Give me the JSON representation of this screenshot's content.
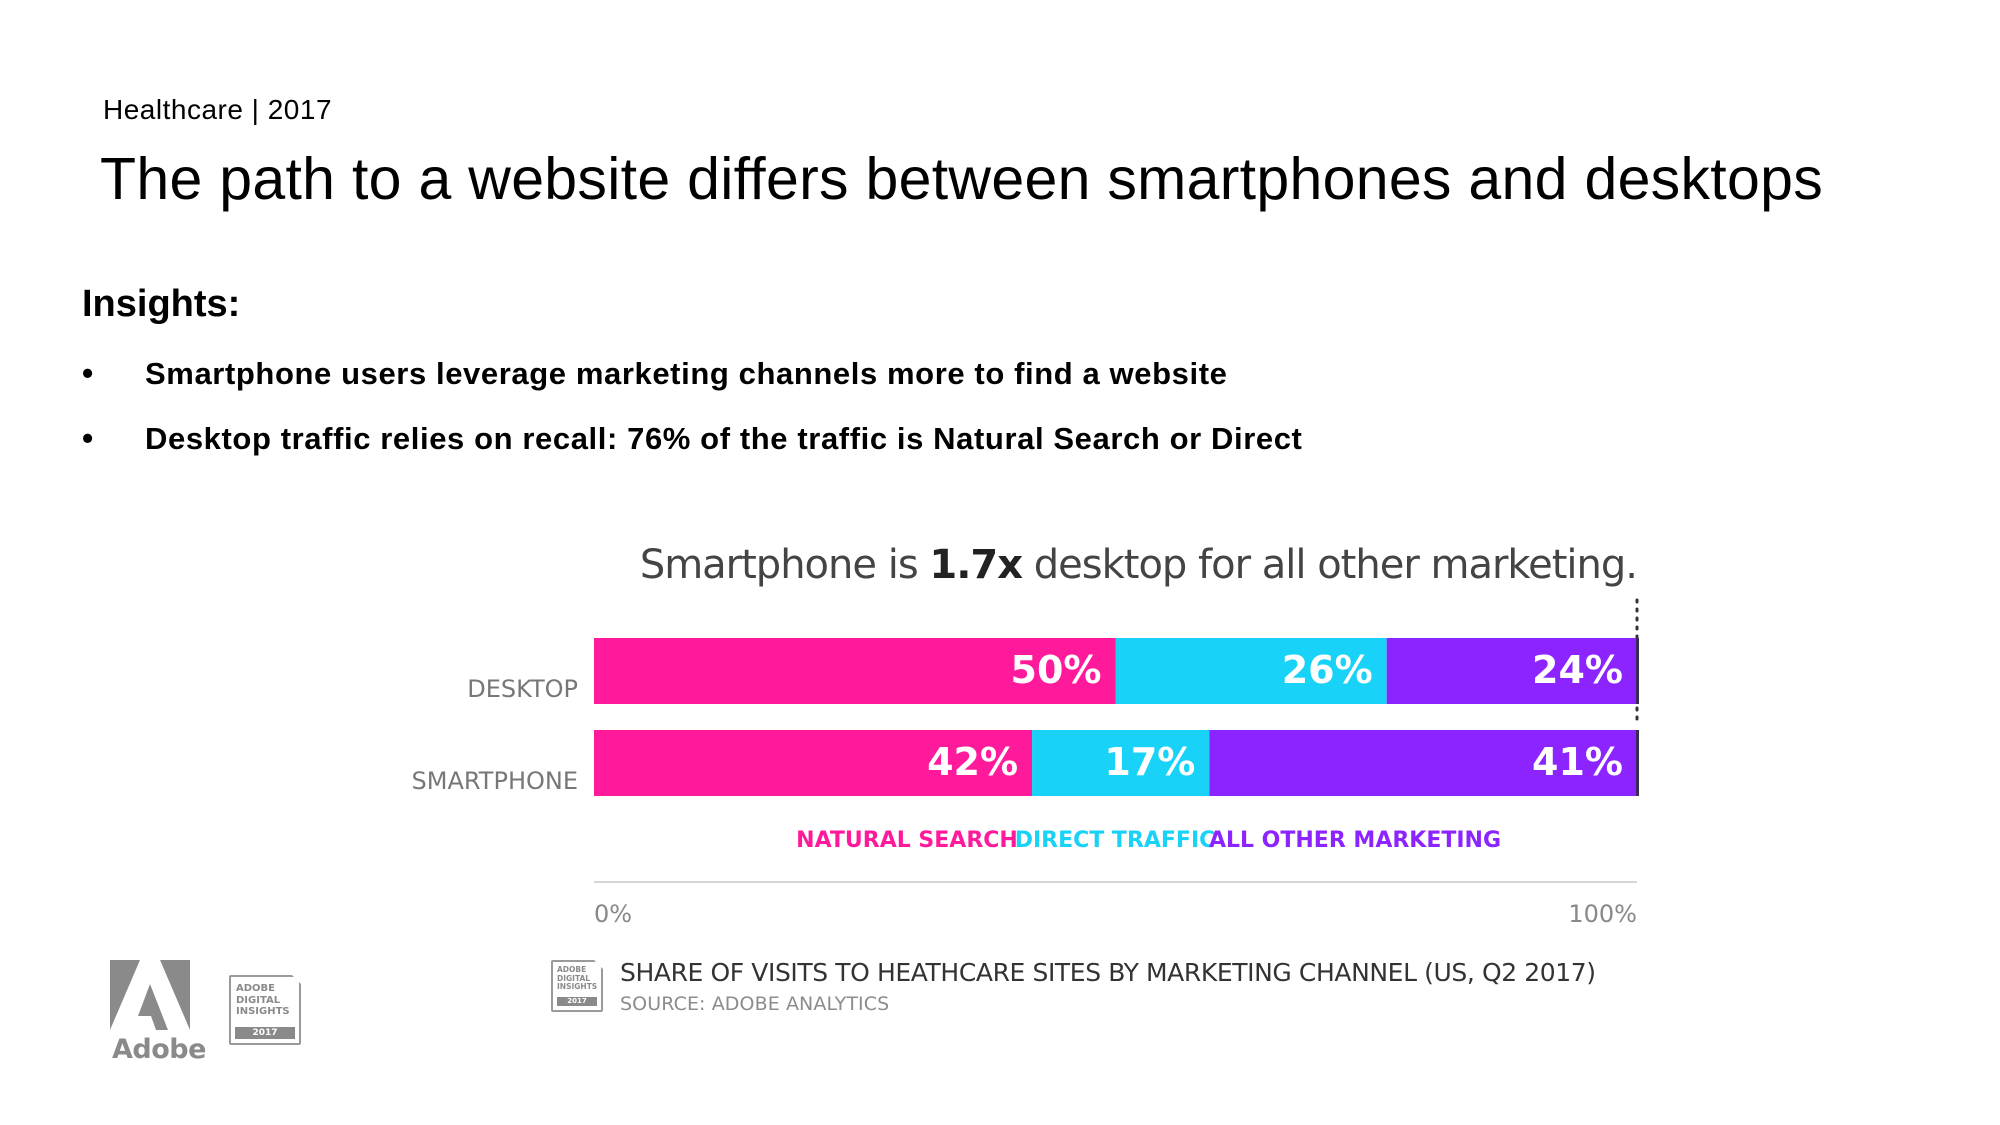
{
  "header": {
    "kicker": "Healthcare | 2017",
    "title": "The path to a website differs between smartphones and desktops"
  },
  "insights": {
    "heading": "Insights:",
    "bullets": [
      "Smartphone users leverage marketing channels more to find a website",
      "Desktop traffic relies on recall: 76% of the traffic is Natural Search or Direct"
    ],
    "bullet_glyph": "•"
  },
  "chart_data": {
    "type": "bar",
    "orientation": "horizontal",
    "stacked": true,
    "normalized": true,
    "headline": {
      "before": "Smartphone is ",
      "bold": "1.7x",
      "after": " desktop for all other marketing."
    },
    "categories": [
      "DESKTOP",
      "SMARTPHONE"
    ],
    "series": [
      {
        "name": "NATURAL SEARCH",
        "values": [
          50,
          42
        ],
        "color": "#ff1a9c"
      },
      {
        "name": "DIRECT TRAFFIC",
        "values": [
          26,
          17
        ],
        "color": "#19d2f7"
      },
      {
        "name": "ALL OTHER MARKETING",
        "values": [
          24,
          41
        ],
        "color": "#8c24ff"
      }
    ],
    "value_suffix": "%",
    "xlim": [
      0,
      100
    ],
    "xticks": [
      "0%",
      "100%"
    ],
    "legend_position": "below-bars",
    "reference_line_at": 100
  },
  "footer": {
    "logo_text": "Adobe",
    "badge_lines": [
      "ADOBE",
      "DIGITAL",
      "INSIGHTS"
    ],
    "badge_year": "2017",
    "source_title": "SHARE OF VISITS TO HEATHCARE SITES BY MARKETING CHANNEL (US, Q2 2017)",
    "source_note": "SOURCE: ADOBE ANALYTICS"
  },
  "colors": {
    "natural_search": "#ff1a9c",
    "direct_traffic": "#19d2f7",
    "all_other_marketing": "#8c24ff",
    "axis": "#d6d6d6",
    "muted_text": "#8a8a8a"
  }
}
